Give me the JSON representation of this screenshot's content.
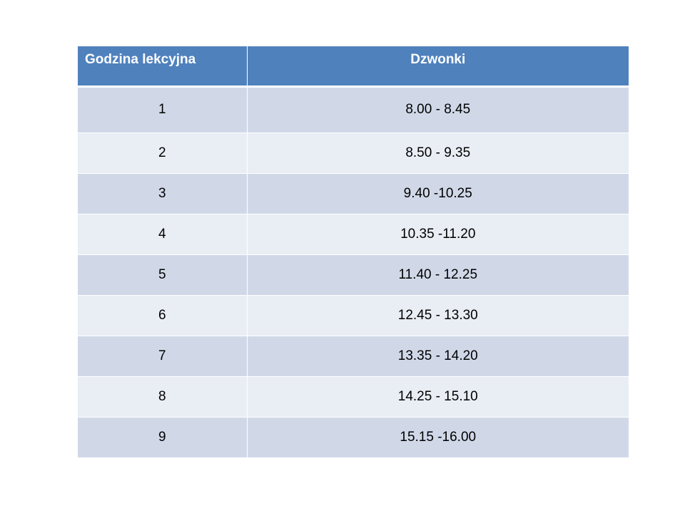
{
  "table": {
    "headers": [
      "Godzina lekcyjna",
      "Dzwonki"
    ],
    "rows": [
      [
        "1",
        "8.00 - 8.45"
      ],
      [
        "2",
        "8.50 - 9.35"
      ],
      [
        "3",
        "9.40 -10.25"
      ],
      [
        "4",
        "10.35 -11.20"
      ],
      [
        "5",
        "11.40 - 12.25"
      ],
      [
        "6",
        "12.45 - 13.30"
      ],
      [
        "7",
        "13.35 - 14.20"
      ],
      [
        "8",
        "14.25 - 15.10"
      ],
      [
        "9",
        "15.15 -16.00"
      ]
    ]
  },
  "colors": {
    "header_background": "#4f81bd",
    "header_text": "#ffffff",
    "row_band_dark": "#d0d8e8",
    "row_band_light": "#e9edf4"
  }
}
